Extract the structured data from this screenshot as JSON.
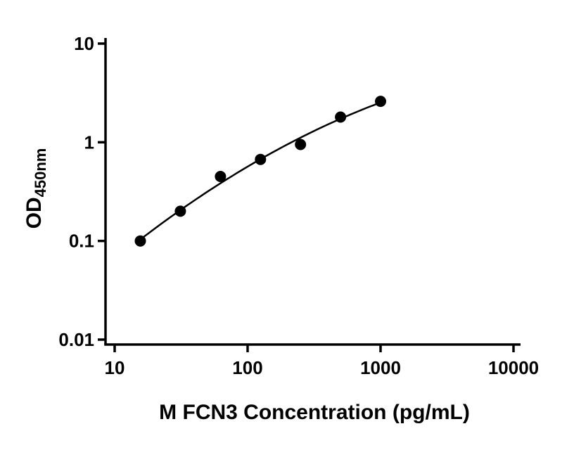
{
  "chart_data": {
    "type": "scatter",
    "title": "",
    "xlabel": "M FCN3 Concentration (pg/mL)",
    "ylabel_main": "OD",
    "ylabel_sub": "450nm",
    "x": [
      15.6,
      31.2,
      62.5,
      125,
      250,
      500,
      1000
    ],
    "y": [
      0.1,
      0.2,
      0.45,
      0.67,
      0.95,
      1.8,
      2.6
    ],
    "x_scale": "log",
    "y_scale": "log",
    "xlim": [
      10,
      10000
    ],
    "ylim": [
      0.01,
      10
    ],
    "x_ticks": [
      {
        "value": 10,
        "label": "10"
      },
      {
        "value": 100,
        "label": "100"
      },
      {
        "value": 1000,
        "label": "1000"
      },
      {
        "value": 10000,
        "label": "10000"
      }
    ],
    "y_ticks": [
      {
        "value": 0.01,
        "label": "0.01"
      },
      {
        "value": 0.1,
        "label": "0.1"
      },
      {
        "value": 1,
        "label": "1"
      },
      {
        "value": 10,
        "label": "10"
      }
    ],
    "has_fit_line": true,
    "grid": false,
    "legend": "none",
    "marker_color": "#000000",
    "line_color": "#000000",
    "axis_color": "#000000",
    "background": "#ffffff"
  }
}
